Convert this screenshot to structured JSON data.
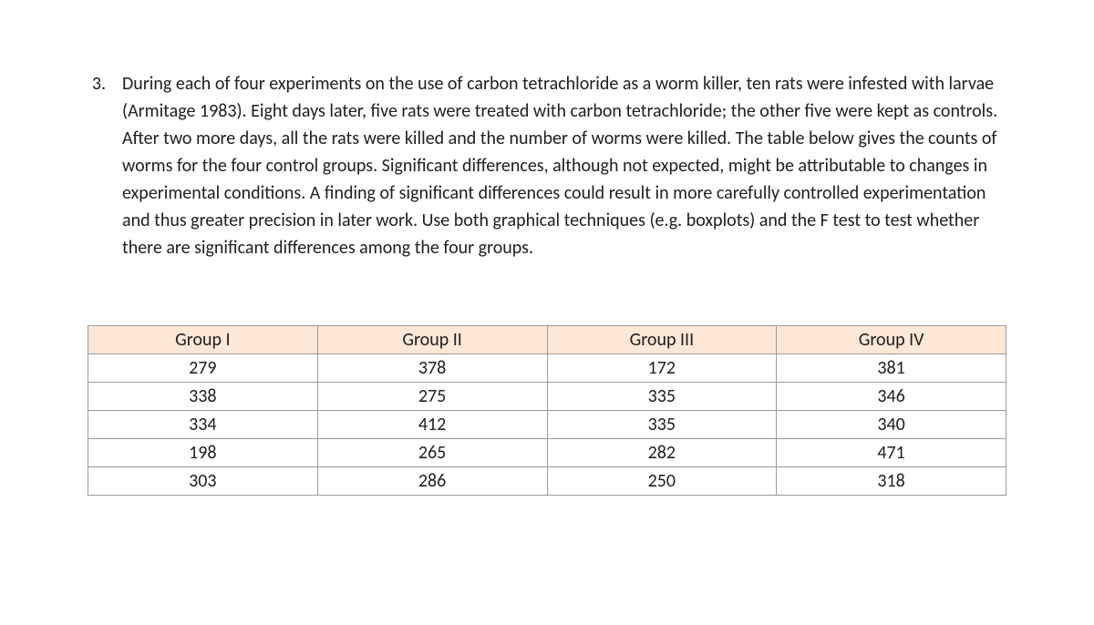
{
  "question": {
    "number": "3.",
    "text": "During each of four experiments on the use of carbon tetrachloride as a worm killer, ten rats were infested with larvae (Armitage 1983). Eight days later, five rats were treated with carbon tetrachloride; the other five were kept as controls. After two more days, all the rats were killed and the number of worms were killed. The table below gives the counts of worms for the four control groups. Significant differences, although not expected, might be attributable to changes in experimental conditions. A finding of significant differences could result in more carefully controlled experimentation and thus greater precision in later work. Use both graphical techniques (e.g. boxplots) and the F test to test whether there are significant differences among the four groups."
  },
  "table": {
    "type": "table",
    "header_bg_color": "#fde8d8",
    "border_color": "#9a9a9a",
    "cell_bg_color": "#ffffff",
    "font_size": 20,
    "columns": [
      "Group I",
      "Group II",
      "Group III",
      "Group IV"
    ],
    "rows": [
      [
        "279",
        "378",
        "172",
        "381"
      ],
      [
        "338",
        "275",
        "335",
        "346"
      ],
      [
        "334",
        "412",
        "335",
        "340"
      ],
      [
        "198",
        "265",
        "282",
        "471"
      ],
      [
        "303",
        "286",
        "250",
        "318"
      ]
    ]
  }
}
